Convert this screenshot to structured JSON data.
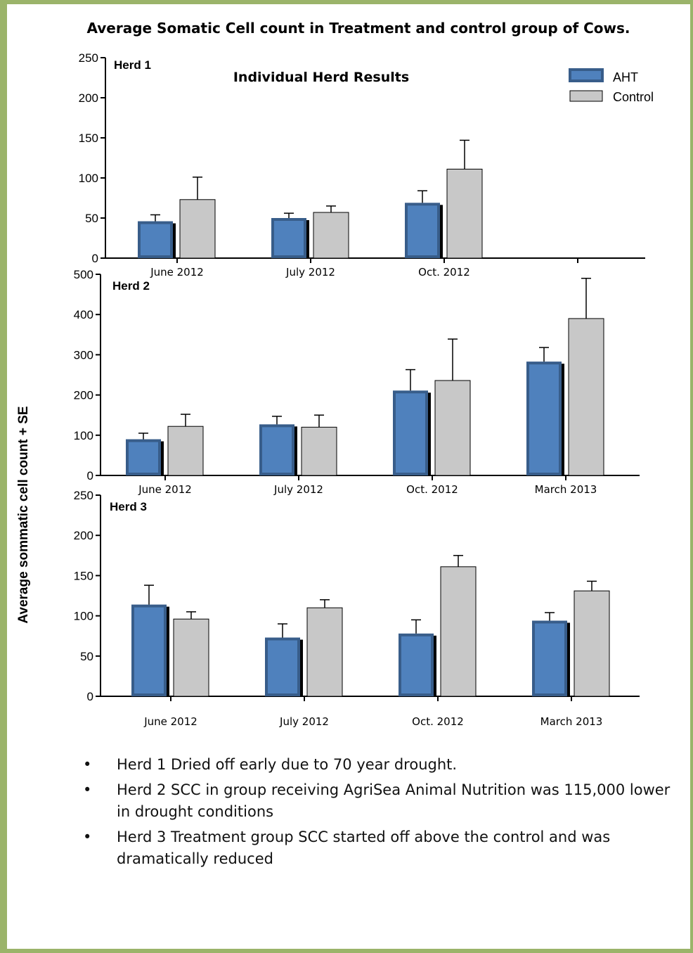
{
  "page": {
    "title": "Average Somatic Cell count in Treatment and control group of Cows.",
    "notes": [
      "Herd 1 Dried off early due to 70 year drought.",
      "Herd 2 SCC in group receiving AgriSea Animal Nutrition was 115,000 lower in drought conditions",
      "Herd 3 Treatment group SCC started off above the control and was dramatically reduced"
    ]
  },
  "colors": {
    "border": "#9bb46a",
    "aht_fill": "#4f81bd",
    "aht_stroke": "#385d8a",
    "control_fill": "#c8c8c8"
  },
  "chart_data": [
    {
      "type": "bar",
      "panel_label": "Herd 1",
      "title": "Individual Herd Results",
      "ylabel": "Average sommatic cell count + SE",
      "ylim": [
        0,
        250
      ],
      "yticks": [
        0,
        50,
        100,
        150,
        200,
        250
      ],
      "categories": [
        "June 2012",
        "July 2012",
        "Oct. 2012",
        ""
      ],
      "legend": {
        "position": "top-right",
        "entries": [
          "AHT",
          "Control"
        ]
      },
      "series": [
        {
          "name": "AHT",
          "values": [
            46,
            50,
            69,
            null
          ],
          "se": [
            8,
            6,
            15,
            null
          ]
        },
        {
          "name": "Control",
          "values": [
            73,
            57,
            111,
            null
          ],
          "se": [
            28,
            8,
            36,
            null
          ]
        }
      ]
    },
    {
      "type": "bar",
      "panel_label": "Herd 2",
      "ylim": [
        0,
        500
      ],
      "yticks": [
        0,
        100,
        200,
        300,
        400,
        500
      ],
      "categories": [
        "June 2012",
        "July 2012",
        "Oct. 2012",
        "March 2013"
      ],
      "series": [
        {
          "name": "AHT",
          "values": [
            90,
            127,
            211,
            283
          ],
          "se": [
            15,
            20,
            52,
            35
          ]
        },
        {
          "name": "Control",
          "values": [
            122,
            120,
            236,
            390
          ],
          "se": [
            30,
            30,
            103,
            100
          ]
        }
      ]
    },
    {
      "type": "bar",
      "panel_label": "Herd 3",
      "ylim": [
        0,
        250
      ],
      "yticks": [
        0,
        50,
        100,
        150,
        200,
        250
      ],
      "categories": [
        "June 2012",
        "July 2012",
        "Oct. 2012",
        "March 2013"
      ],
      "series": [
        {
          "name": "AHT",
          "values": [
            114,
            73,
            78,
            94
          ],
          "se": [
            24,
            17,
            17,
            10
          ]
        },
        {
          "name": "Control",
          "values": [
            96,
            110,
            161,
            131
          ],
          "se": [
            9,
            10,
            14,
            12
          ]
        }
      ]
    }
  ]
}
